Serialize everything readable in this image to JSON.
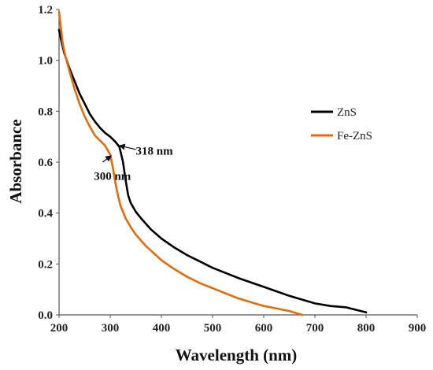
{
  "chart_data": {
    "type": "line",
    "title": "",
    "xlabel": "Wavelength (nm)",
    "ylabel": "Absorbance",
    "xlim": [
      200,
      900
    ],
    "ylim": [
      0.0,
      1.2
    ],
    "x_ticks": [
      "200",
      "300",
      "400",
      "500",
      "600",
      "700",
      "800",
      "900"
    ],
    "y_ticks": [
      "0.0",
      "0.2",
      "0.4",
      "0.6",
      "0.8",
      "1.0",
      "1.2"
    ],
    "grid": false,
    "legend_position": "right",
    "series": [
      {
        "name": "ZnS",
        "color": "#000000",
        "points": [
          [
            200,
            1.12
          ],
          [
            205,
            1.07
          ],
          [
            210,
            1.03
          ],
          [
            220,
            0.97
          ],
          [
            230,
            0.92
          ],
          [
            240,
            0.87
          ],
          [
            250,
            0.83
          ],
          [
            260,
            0.79
          ],
          [
            270,
            0.76
          ],
          [
            280,
            0.735
          ],
          [
            290,
            0.715
          ],
          [
            300,
            0.7
          ],
          [
            310,
            0.68
          ],
          [
            318,
            0.66
          ],
          [
            325,
            0.6
          ],
          [
            330,
            0.53
          ],
          [
            335,
            0.47
          ],
          [
            340,
            0.44
          ],
          [
            350,
            0.405
          ],
          [
            360,
            0.38
          ],
          [
            380,
            0.335
          ],
          [
            400,
            0.3
          ],
          [
            425,
            0.265
          ],
          [
            450,
            0.235
          ],
          [
            475,
            0.21
          ],
          [
            500,
            0.185
          ],
          [
            550,
            0.145
          ],
          [
            600,
            0.11
          ],
          [
            650,
            0.075
          ],
          [
            700,
            0.045
          ],
          [
            730,
            0.035
          ],
          [
            760,
            0.03
          ],
          [
            780,
            0.02
          ],
          [
            800,
            0.01
          ]
        ]
      },
      {
        "name": "Fe-ZnS",
        "color": "#e36c0a",
        "points": [
          [
            200,
            1.19
          ],
          [
            203,
            1.14
          ],
          [
            207,
            1.07
          ],
          [
            212,
            1.02
          ],
          [
            220,
            0.96
          ],
          [
            230,
            0.89
          ],
          [
            240,
            0.83
          ],
          [
            250,
            0.78
          ],
          [
            260,
            0.74
          ],
          [
            270,
            0.705
          ],
          [
            280,
            0.685
          ],
          [
            290,
            0.665
          ],
          [
            300,
            0.63
          ],
          [
            305,
            0.58
          ],
          [
            310,
            0.52
          ],
          [
            315,
            0.47
          ],
          [
            320,
            0.43
          ],
          [
            330,
            0.38
          ],
          [
            340,
            0.345
          ],
          [
            350,
            0.315
          ],
          [
            370,
            0.27
          ],
          [
            400,
            0.215
          ],
          [
            425,
            0.18
          ],
          [
            450,
            0.15
          ],
          [
            475,
            0.125
          ],
          [
            500,
            0.105
          ],
          [
            550,
            0.065
          ],
          [
            600,
            0.035
          ],
          [
            625,
            0.025
          ],
          [
            650,
            0.015
          ],
          [
            675,
            0.0
          ]
        ]
      }
    ],
    "annotations": [
      {
        "text": "318 nm",
        "arrow_from": [
          350,
          0.65
        ],
        "arrow_to": [
          318,
          0.665
        ],
        "label_at": [
          350,
          0.63
        ]
      },
      {
        "text": "300 nm",
        "arrow_from": [
          285,
          0.6
        ],
        "arrow_to": [
          302,
          0.625
        ],
        "label_at": [
          268,
          0.53
        ]
      }
    ]
  }
}
